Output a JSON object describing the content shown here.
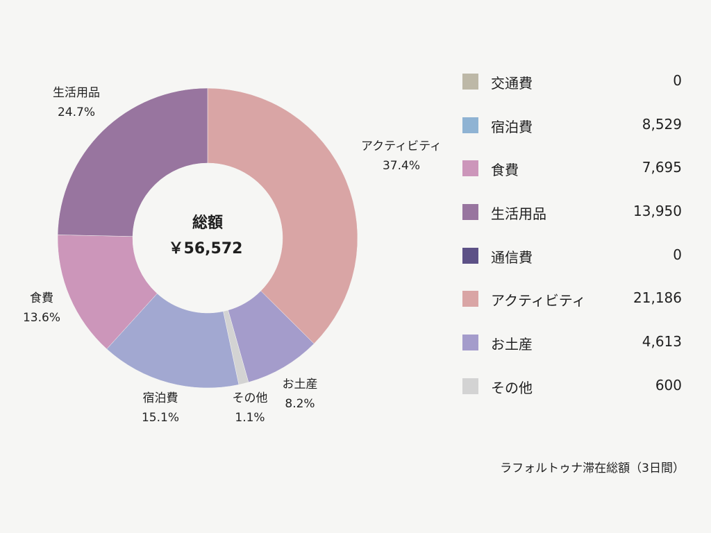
{
  "chart_data": {
    "type": "donut",
    "center": {
      "title": "総額",
      "total": "￥56,572"
    },
    "caption": "ラフォルトゥナ滞在総額（3日間）",
    "legend": [
      {
        "name": "交通費",
        "value": 0,
        "display": "0",
        "color": "#bdb8a7"
      },
      {
        "name": "宿泊費",
        "value": 8529,
        "display": "8,529",
        "color": "#8fb3d3"
      },
      {
        "name": "食費",
        "value": 7695,
        "display": "7,695",
        "color": "#cc96ba"
      },
      {
        "name": "生活用品",
        "value": 13950,
        "display": "13,950",
        "color": "#98759f"
      },
      {
        "name": "通信費",
        "value": 0,
        "display": "0",
        "color": "#5d5186"
      },
      {
        "name": "アクティビティ",
        "value": 21186,
        "display": "21,186",
        "color": "#d9a5a5"
      },
      {
        "name": "お土産",
        "value": 4613,
        "display": "4,613",
        "color": "#a49ccb"
      },
      {
        "name": "その他",
        "value": 600,
        "display": "600",
        "color": "#d3d3d3"
      }
    ],
    "slices": [
      {
        "name": "アクティビティ",
        "value": 21186,
        "percent": "37.4%",
        "color": "#d9a5a5"
      },
      {
        "name": "お土産",
        "value": 4613,
        "percent": "8.2%",
        "color": "#a49ccb"
      },
      {
        "name": "その他",
        "value": 600,
        "percent": "1.1%",
        "color": "#d3d3d3"
      },
      {
        "name": "宿泊費",
        "value": 8529,
        "percent": "15.1%",
        "color": "#a2a8d1"
      },
      {
        "name": "食費",
        "value": 7695,
        "percent": "13.6%",
        "color": "#cc96ba"
      },
      {
        "name": "生活用品",
        "value": 13950,
        "percent": "24.7%",
        "color": "#98759f"
      }
    ]
  }
}
